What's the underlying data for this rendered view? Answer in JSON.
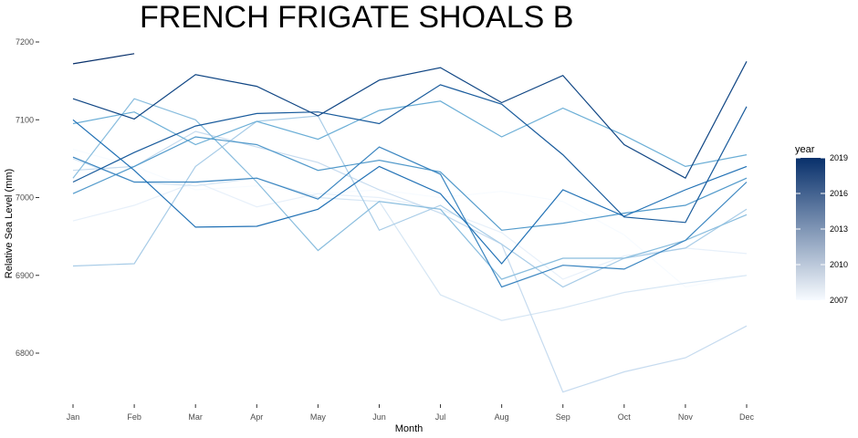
{
  "chart_data": {
    "type": "line",
    "title": "FRENCH FRIGATE SHOALS B",
    "xlabel": "Month",
    "ylabel": "Relative Sea Level (mm)",
    "categories": [
      "Jan",
      "Feb",
      "Mar",
      "Apr",
      "May",
      "Jun",
      "Jul",
      "Aug",
      "Sep",
      "Oct",
      "Nov",
      "Dec"
    ],
    "ylim": [
      6740,
      7220
    ],
    "yticks": [
      6800,
      6900,
      7000,
      7100,
      7200
    ],
    "grid": false,
    "legend": {
      "title": "year",
      "position": "right",
      "min": 2007,
      "max": 2019,
      "ticks": [
        2007,
        2010,
        2013,
        2016,
        2019
      ],
      "color_low": "#f7fbff",
      "color_high": "#08306b"
    },
    "series": [
      {
        "year": 2007,
        "values": [
          7062,
          7040,
          7010,
          7015,
          7005,
          7010,
          7000,
          7008,
          6995,
          6952,
          6885,
          6900
        ]
      },
      {
        "year": 2008,
        "values": [
          6970,
          6990,
          7020,
          6988,
          7005,
          7000,
          6985,
          6955,
          6895,
          6925,
          6935,
          6928
        ]
      },
      {
        "year": 2009,
        "values": [
          7050,
          7020,
          7015,
          7025,
          7000,
          6995,
          6875,
          6842,
          6858,
          6878,
          6890,
          6900
        ]
      },
      {
        "year": 2010,
        "values": [
          7035,
          7040,
          7085,
          7065,
          7045,
          7010,
          6980,
          6940,
          6750,
          6776,
          6794,
          6835
        ]
      },
      {
        "year": 2011,
        "values": [
          6912,
          6915,
          7040,
          7098,
          7105,
          6958,
          6990,
          6940,
          6885,
          6922,
          6935,
          6985
        ]
      },
      {
        "year": 2012,
        "values": [
          7025,
          7127,
          7100,
          7020,
          6932,
          6995,
          6985,
          6895,
          6922,
          6922,
          6945,
          6978
        ]
      },
      {
        "year": 2013,
        "values": [
          7095,
          7110,
          7068,
          7098,
          7075,
          7112,
          7124,
          7078,
          7115,
          7080,
          7040,
          7055
        ]
      },
      {
        "year": 2014,
        "values": [
          7005,
          7040,
          7078,
          7068,
          7035,
          7048,
          7033,
          6958,
          6967,
          6980,
          6990,
          7025
        ]
      },
      {
        "year": 2015,
        "values": [
          7052,
          7020,
          7020,
          7025,
          6998,
          7065,
          7030,
          6885,
          6913,
          6908,
          6945,
          7020
        ]
      },
      {
        "year": 2016,
        "values": [
          7100,
          7035,
          6962,
          6963,
          6985,
          7040,
          7005,
          6915,
          7010,
          6976,
          7010,
          7040
        ]
      },
      {
        "year": 2017,
        "values": [
          7020,
          7058,
          7092,
          7108,
          7110,
          7095,
          7145,
          7120,
          7055,
          6975,
          6968,
          7117
        ]
      },
      {
        "year": 2018,
        "values": [
          7127,
          7101,
          7158,
          7143,
          7105,
          7151,
          7167,
          7122,
          7157,
          7068,
          7025,
          7175
        ]
      },
      {
        "year": 2019,
        "values": [
          7172,
          7185,
          null,
          null,
          null,
          null,
          null,
          null,
          null,
          null,
          null,
          null
        ]
      }
    ]
  }
}
